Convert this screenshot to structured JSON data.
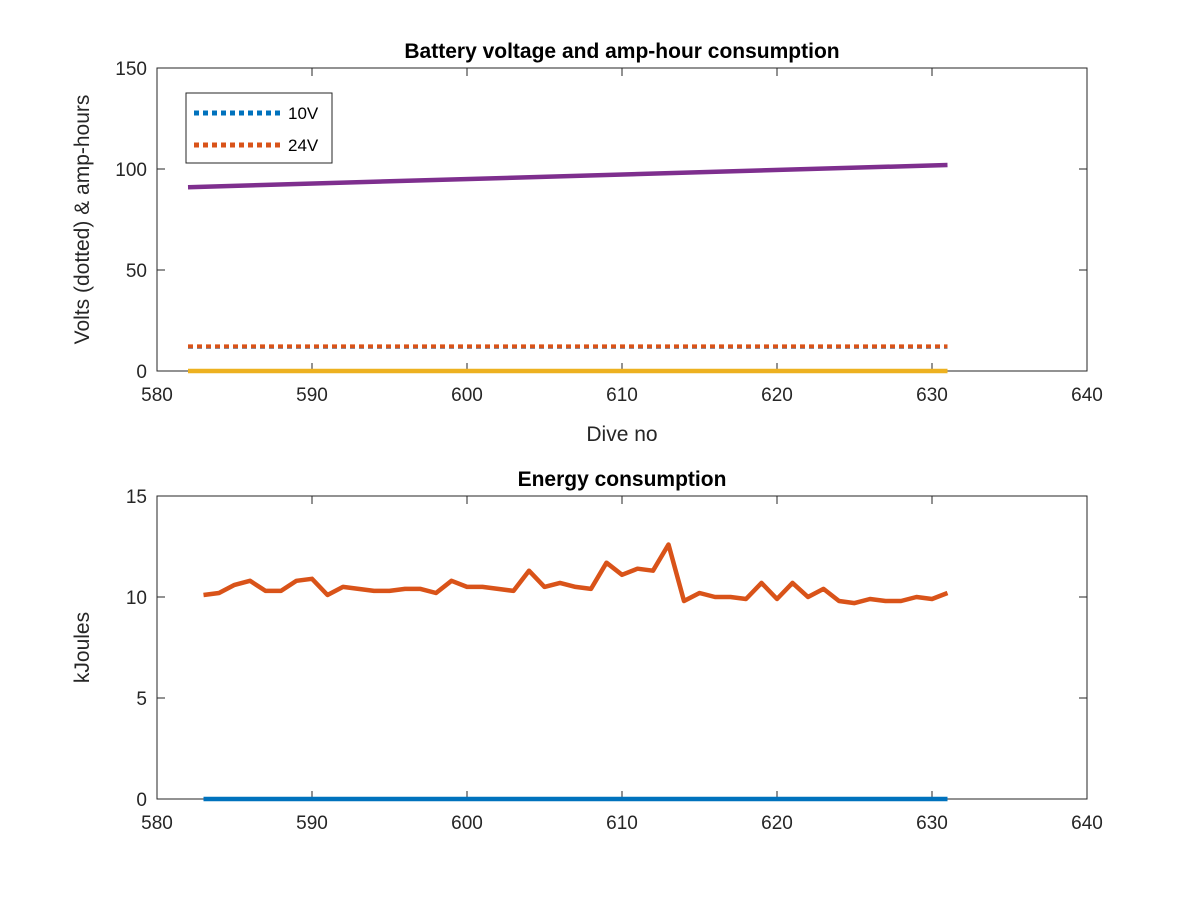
{
  "chart_data": [
    {
      "type": "line",
      "title": "Battery voltage and amp-hour consumption",
      "xlabel": "Dive no",
      "ylabel": "Volts (dotted) & amp-hours",
      "xlim": [
        580,
        640
      ],
      "ylim": [
        0,
        150
      ],
      "xticks": [
        "580",
        "590",
        "600",
        "610",
        "620",
        "630",
        "640"
      ],
      "yticks": [
        "0",
        "50",
        "100",
        "150"
      ],
      "grid": false,
      "legend": {
        "placement": "top-left",
        "entries": [
          "10V",
          "24V"
        ]
      },
      "series": [
        {
          "name": "10V",
          "style": "dotted",
          "color": "#0072BD",
          "x": [
            582,
            631
          ],
          "y": [
            12,
            12
          ]
        },
        {
          "name": "24V",
          "style": "dotted",
          "color": "#D95319",
          "x": [
            582,
            631
          ],
          "y": [
            12.2,
            12.2
          ]
        },
        {
          "style": "solid",
          "color": "#EDB120",
          "x": [
            582,
            631
          ],
          "y": [
            0,
            0
          ]
        },
        {
          "style": "solid",
          "color": "#7E2F8E",
          "x": [
            582,
            631
          ],
          "y": [
            91,
            102
          ]
        }
      ]
    },
    {
      "type": "line",
      "title": "Energy consumption",
      "xlabel": "",
      "ylabel": "kJoules",
      "xlim": [
        580,
        640
      ],
      "ylim": [
        0,
        15
      ],
      "xticks": [
        "580",
        "590",
        "600",
        "610",
        "620",
        "630",
        "640"
      ],
      "yticks": [
        "0",
        "5",
        "10",
        "15"
      ],
      "grid": false,
      "series": [
        {
          "style": "solid",
          "color": "#D95319",
          "x": [
            583,
            584,
            585,
            586,
            587,
            588,
            589,
            590,
            591,
            592,
            593,
            594,
            595,
            596,
            597,
            598,
            599,
            600,
            601,
            602,
            603,
            604,
            605,
            606,
            607,
            608,
            609,
            610,
            611,
            612,
            613,
            614,
            615,
            616,
            617,
            618,
            619,
            620,
            621,
            622,
            623,
            624,
            625,
            626,
            627,
            628,
            629,
            630,
            631
          ],
          "y": [
            10.1,
            10.2,
            10.6,
            10.8,
            10.3,
            10.3,
            10.8,
            10.9,
            10.1,
            10.5,
            10.4,
            10.3,
            10.3,
            10.4,
            10.4,
            10.2,
            10.8,
            10.5,
            10.5,
            10.4,
            10.3,
            11.3,
            10.5,
            10.7,
            10.5,
            10.4,
            11.7,
            11.1,
            11.4,
            11.3,
            12.6,
            9.8,
            10.2,
            10.0,
            10.0,
            9.9,
            10.7,
            9.9,
            10.7,
            10.0,
            10.4,
            9.8,
            9.7,
            9.9,
            9.8,
            9.8,
            10.0,
            9.9,
            10.2
          ]
        },
        {
          "style": "solid",
          "color": "#0072BD",
          "x": [
            583,
            631
          ],
          "y": [
            0,
            0
          ]
        }
      ]
    }
  ]
}
